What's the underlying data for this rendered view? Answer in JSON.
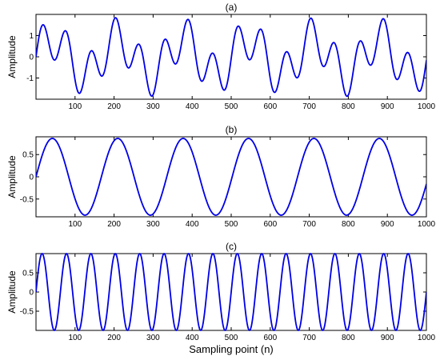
{
  "chart_data": [
    {
      "type": "line",
      "title": "(a)",
      "ylabel": "Amplitude",
      "xlabel": "",
      "xlim": [
        0,
        1000
      ],
      "ylim": [
        -2,
        2
      ],
      "x_ticks": [
        "100",
        "200",
        "300",
        "400",
        "500",
        "600",
        "700",
        "800",
        "900",
        "1000"
      ],
      "y_ticks": [
        {
          "value": 1,
          "label": "1"
        },
        {
          "value": 0,
          "label": "0"
        },
        {
          "value": -1,
          "label": "-1"
        }
      ],
      "series_color": "#0000e6",
      "components": [
        {
          "amplitude": 0.8636,
          "period": 167.5,
          "phase_deg": 0
        },
        {
          "amplitude": 1.0,
          "period": 62.5,
          "phase_deg": 0
        }
      ],
      "grid": false
    },
    {
      "type": "line",
      "title": "(b)",
      "ylabel": "Amplitude",
      "xlabel": "",
      "xlim": [
        0,
        1000
      ],
      "ylim": [
        -0.9,
        0.9
      ],
      "x_ticks": [
        "100",
        "200",
        "300",
        "400",
        "500",
        "600",
        "700",
        "800",
        "900",
        "1000"
      ],
      "y_ticks": [
        {
          "value": 0.5,
          "label": "0.5"
        },
        {
          "value": 0,
          "label": "0"
        },
        {
          "value": -0.5,
          "label": "-0.5"
        }
      ],
      "series_color": "#0000e6",
      "components": [
        {
          "amplitude": 0.8636,
          "period": 167.5,
          "phase_deg": 0
        }
      ],
      "grid": false
    },
    {
      "type": "line",
      "title": "(c)",
      "ylabel": "Amplitude",
      "xlabel": "Sampling point (n)",
      "xlim": [
        0,
        1000
      ],
      "ylim": [
        -1,
        1
      ],
      "x_ticks": [
        "100",
        "200",
        "300",
        "400",
        "500",
        "600",
        "700",
        "800",
        "900",
        "1000"
      ],
      "y_ticks": [
        {
          "value": 0.5,
          "label": "0.5"
        },
        {
          "value": 0,
          "label": "0"
        },
        {
          "value": -0.5,
          "label": "-0.5"
        }
      ],
      "series_color": "#0000e6",
      "components": [
        {
          "amplitude": 1.0,
          "period": 62.5,
          "phase_deg": 0
        }
      ],
      "grid": false
    }
  ]
}
